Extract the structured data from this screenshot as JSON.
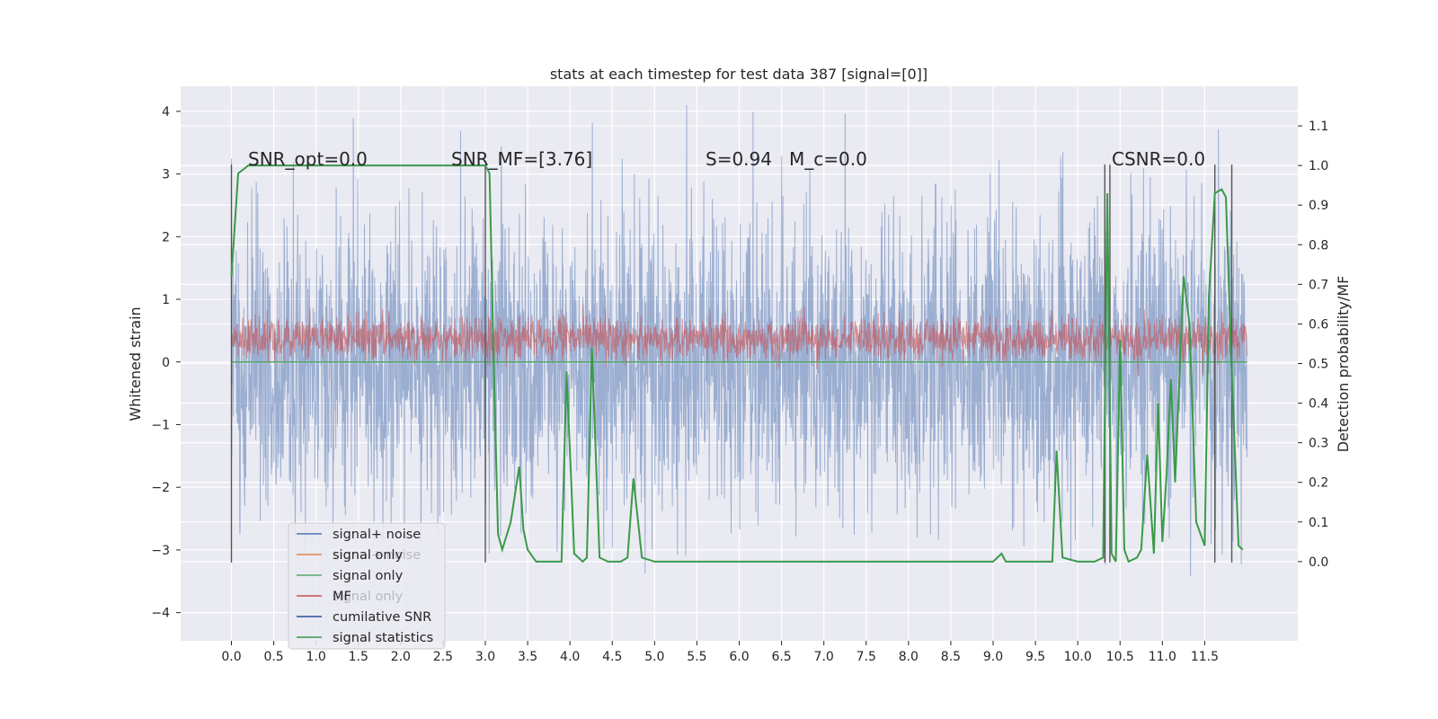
{
  "chart_data": {
    "type": "line",
    "title": "stats at each timestep for test data 387 [signal=[0]]",
    "ylabel": "Whitened strain",
    "ylabel_right": "Detection probability/MF",
    "xlim": [
      -0.6,
      12.6
    ],
    "ylim": [
      -4.45,
      4.4
    ],
    "ylim_right": [
      -0.2,
      1.2
    ],
    "xticks": [
      "0.0",
      "0.5",
      "1.0",
      "1.5",
      "2.0",
      "2.5",
      "3.0",
      "3.5",
      "4.0",
      "4.5",
      "5.0",
      "5.5",
      "6.0",
      "6.5",
      "7.0",
      "7.5",
      "8.0",
      "8.5",
      "9.0",
      "9.5",
      "10.0",
      "10.5",
      "11.0",
      "11.5"
    ],
    "xtick_values": [
      0,
      0.5,
      1,
      1.5,
      2,
      2.5,
      3,
      3.5,
      4,
      4.5,
      5,
      5.5,
      6,
      6.5,
      7,
      7.5,
      8,
      8.5,
      9,
      9.5,
      10,
      10.5,
      11,
      11.5
    ],
    "yticks": [
      "4",
      "3",
      "2",
      "1",
      "0",
      "−1",
      "−2",
      "−3",
      "−4"
    ],
    "ytick_values": [
      4,
      3,
      2,
      1,
      0,
      -1,
      -2,
      -3,
      -4
    ],
    "yticks_right": [
      "1.1",
      "1.0",
      "0.9",
      "0.8",
      "0.7",
      "0.6",
      "0.5",
      "0.4",
      "0.3",
      "0.2",
      "0.1",
      "0.0"
    ],
    "ytick_right_values": [
      1.1,
      1.0,
      0.9,
      0.8,
      0.7,
      0.6,
      0.5,
      0.4,
      0.3,
      0.2,
      0.1,
      0.0
    ],
    "annotations": [
      {
        "text": "SNR_opt=0.0"
      },
      {
        "text": "SNR_MF=[3.76]"
      },
      {
        "text": "S=0.94"
      },
      {
        "text": "M_c=0.0"
      },
      {
        "text": "CSNR=0.0"
      }
    ],
    "legend": {
      "placement": "lower-left",
      "entries": [
        {
          "label": "signal+ noise",
          "color": "#4c72b0"
        },
        {
          "label": "signal only",
          "color": "#dd8452"
        },
        {
          "label": "signal only",
          "color": "#55a868"
        },
        {
          "label": "MF",
          "color": "#c44e52"
        },
        {
          "label": "cumilative SNR",
          "color": "#2a4e9a"
        },
        {
          "label": "signal statistics",
          "color": "#3a9a48"
        }
      ],
      "ghost_entries": [
        "signal+ noise",
        "signal only",
        "signal statistics"
      ]
    },
    "series": [
      {
        "name": "signal+ noise",
        "kind": "noise",
        "x_range": [
          0,
          12
        ],
        "amplitude_std": 1.15,
        "color": "#4c72b0",
        "alpha": 0.5
      },
      {
        "name": "MF",
        "kind": "noise",
        "x_range": [
          0,
          12
        ],
        "amplitude_std": 0.17,
        "offset": 0.38,
        "color": "#c44e52",
        "alpha": 0.6
      },
      {
        "name": "signal only",
        "kind": "flat",
        "x_range": [
          0,
          12
        ],
        "value": 0.0,
        "color": "#55a868"
      },
      {
        "name": "signal statistics",
        "axis": "right",
        "color": "#3a9a48",
        "x": [
          0,
          0.08,
          0.2,
          0.4,
          0.6,
          0.8,
          1.0,
          1.5,
          2.0,
          2.5,
          2.9,
          3.0,
          3.05,
          3.1,
          3.15,
          3.2,
          3.3,
          3.4,
          3.45,
          3.5,
          3.6,
          3.8,
          3.9,
          3.96,
          4.05,
          4.15,
          4.2,
          4.26,
          4.35,
          4.45,
          4.6,
          4.68,
          4.75,
          4.85,
          5.0,
          6.0,
          7.0,
          7.3,
          7.4,
          7.7,
          7.8,
          8.0,
          8.5,
          9.0,
          9.1,
          9.15,
          9.3,
          9.5,
          9.6,
          9.7,
          9.75,
          9.82,
          10.0,
          10.2,
          10.3,
          10.35,
          10.4,
          10.45,
          10.5,
          10.55,
          10.6,
          10.7,
          10.75,
          10.82,
          10.9,
          10.95,
          11.0,
          11.05,
          11.1,
          11.15,
          11.25,
          11.32,
          11.4,
          11.5,
          11.55,
          11.62,
          11.7,
          11.75,
          11.82,
          11.9,
          11.95
        ],
        "y": [
          0.72,
          0.98,
          1.0,
          1.0,
          1.0,
          1.0,
          1.0,
          1.0,
          1.0,
          1.0,
          1.0,
          1.0,
          0.98,
          0.5,
          0.07,
          0.03,
          0.1,
          0.24,
          0.08,
          0.03,
          0.0,
          0.0,
          0.0,
          0.48,
          0.02,
          0.0,
          0.01,
          0.54,
          0.01,
          0.0,
          0.0,
          0.01,
          0.21,
          0.01,
          0.0,
          0.0,
          0.0,
          0.0,
          0.0,
          0.0,
          0.0,
          0.0,
          0.0,
          0.0,
          0.02,
          0.0,
          0.0,
          0.0,
          0.0,
          0.0,
          0.28,
          0.01,
          0.0,
          0.0,
          0.01,
          0.93,
          0.02,
          0.0,
          0.56,
          0.03,
          0.0,
          0.01,
          0.03,
          0.27,
          0.02,
          0.4,
          0.05,
          0.22,
          0.46,
          0.2,
          0.72,
          0.6,
          0.1,
          0.04,
          0.67,
          0.93,
          0.94,
          0.92,
          0.48,
          0.04,
          0.03
        ]
      }
    ],
    "vertical_lines": [
      0.0,
      3.0,
      10.32,
      10.38,
      11.62,
      11.82
    ]
  }
}
